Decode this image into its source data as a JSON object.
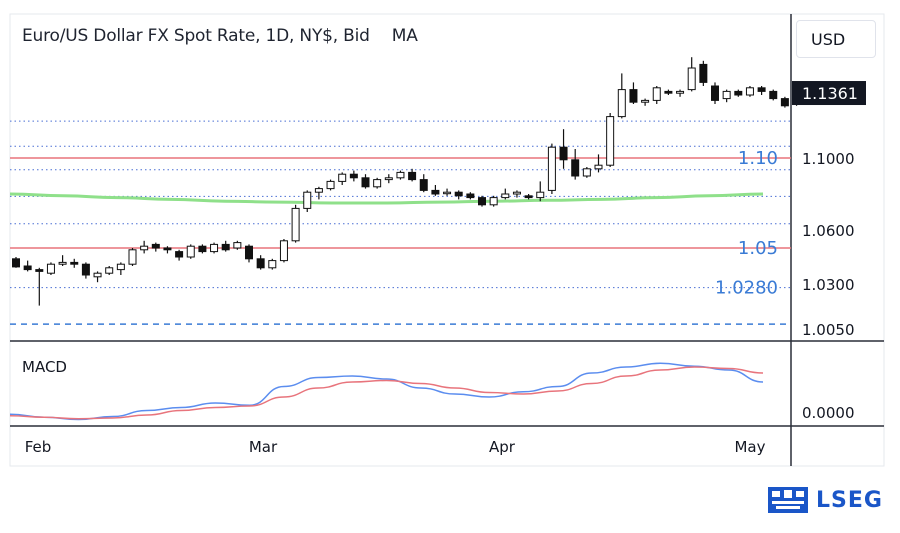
{
  "title": "Euro/US Dollar FX Spot Rate, 1D, NY$, Bid",
  "indicator": "MA",
  "currency": "USD",
  "last_price": "1.1361",
  "macd_label": "MACD",
  "macd_tick": "0.0000",
  "brand": "LSEG",
  "colors": {
    "up": "#ffffff",
    "down": "#111111",
    "resistance": "#e8747c",
    "level_text": "#3a7bd5",
    "ma": "#8fe08a",
    "macd": "#5b8def",
    "signal": "#e8747c",
    "grid_dotted": "#4a6fd4",
    "support_dashed": "#3a7bd5",
    "price_badge": "#131722",
    "brand": "#1a56c8"
  },
  "chart_data": {
    "type": "candlestick",
    "y_ticks": [
      "1.1000",
      "1.0600",
      "1.0300",
      "1.0050"
    ],
    "x_ticks": [
      "Feb",
      "Mar",
      "Apr",
      "May"
    ],
    "levels": [
      {
        "value": 1.1,
        "label": "1.10",
        "style": "solid"
      },
      {
        "value": 1.05,
        "label": "1.05",
        "style": "solid"
      },
      {
        "value": 1.028,
        "label": "1.0280",
        "style": "dotted"
      }
    ],
    "support_dashed": 1.0077,
    "dotted_grid": [
      1.1205,
      1.1065,
      1.0935,
      1.0787,
      1.0635
    ],
    "candles": [
      [
        1.044,
        1.045,
        1.039,
        1.0395
      ],
      [
        1.04,
        1.043,
        1.037,
        1.038
      ],
      [
        1.038,
        1.039,
        1.018,
        1.037
      ],
      [
        1.036,
        1.042,
        1.035,
        1.041
      ],
      [
        1.041,
        1.046,
        1.04,
        1.042
      ],
      [
        1.042,
        1.044,
        1.039,
        1.041
      ],
      [
        1.041,
        1.042,
        1.033,
        1.035
      ],
      [
        1.034,
        1.037,
        1.031,
        1.036
      ],
      [
        1.036,
        1.04,
        1.035,
        1.039
      ],
      [
        1.038,
        1.042,
        1.035,
        1.041
      ],
      [
        1.041,
        1.05,
        1.04,
        1.049
      ],
      [
        1.049,
        1.054,
        1.047,
        1.051
      ],
      [
        1.052,
        1.053,
        1.048,
        1.05
      ],
      [
        1.05,
        1.051,
        1.047,
        1.049
      ],
      [
        1.048,
        1.049,
        1.043,
        1.045
      ],
      [
        1.045,
        1.052,
        1.044,
        1.051
      ],
      [
        1.051,
        1.052,
        1.047,
        1.048
      ],
      [
        1.048,
        1.053,
        1.047,
        1.052
      ],
      [
        1.052,
        1.054,
        1.048,
        1.049
      ],
      [
        1.05,
        1.054,
        1.049,
        1.053
      ],
      [
        1.051,
        1.052,
        1.042,
        1.044
      ],
      [
        1.044,
        1.046,
        1.038,
        1.039
      ],
      [
        1.039,
        1.044,
        1.038,
        1.043
      ],
      [
        1.043,
        1.055,
        1.042,
        1.054
      ],
      [
        1.054,
        1.074,
        1.053,
        1.072
      ],
      [
        1.072,
        1.082,
        1.07,
        1.081
      ],
      [
        1.081,
        1.084,
        1.077,
        1.083
      ],
      [
        1.083,
        1.088,
        1.082,
        1.087
      ],
      [
        1.087,
        1.092,
        1.085,
        1.091
      ],
      [
        1.091,
        1.093,
        1.087,
        1.089
      ],
      [
        1.089,
        1.091,
        1.083,
        1.084
      ],
      [
        1.084,
        1.089,
        1.083,
        1.088
      ],
      [
        1.088,
        1.091,
        1.086,
        1.089
      ],
      [
        1.089,
        1.093,
        1.088,
        1.092
      ],
      [
        1.092,
        1.094,
        1.087,
        1.088
      ],
      [
        1.088,
        1.091,
        1.081,
        1.082
      ],
      [
        1.082,
        1.085,
        1.079,
        1.08
      ],
      [
        1.081,
        1.083,
        1.079,
        1.081
      ],
      [
        1.081,
        1.082,
        1.077,
        1.079
      ],
      [
        1.08,
        1.081,
        1.077,
        1.078
      ],
      [
        1.078,
        1.079,
        1.073,
        1.074
      ],
      [
        1.074,
        1.079,
        1.073,
        1.078
      ],
      [
        1.078,
        1.083,
        1.077,
        1.08
      ],
      [
        1.08,
        1.082,
        1.078,
        1.081
      ],
      [
        1.079,
        1.08,
        1.077,
        1.078
      ],
      [
        1.078,
        1.087,
        1.076,
        1.081
      ],
      [
        1.082,
        1.108,
        1.08,
        1.106
      ],
      [
        1.106,
        1.116,
        1.094,
        1.099
      ],
      [
        1.099,
        1.105,
        1.088,
        1.09
      ],
      [
        1.09,
        1.095,
        1.089,
        1.094
      ],
      [
        1.094,
        1.102,
        1.092,
        1.096
      ],
      [
        1.096,
        1.125,
        1.095,
        1.123
      ],
      [
        1.123,
        1.147,
        1.122,
        1.138
      ],
      [
        1.138,
        1.142,
        1.13,
        1.131
      ],
      [
        1.131,
        1.133,
        1.129,
        1.132
      ],
      [
        1.132,
        1.14,
        1.13,
        1.139
      ],
      [
        1.137,
        1.138,
        1.135,
        1.136
      ],
      [
        1.136,
        1.138,
        1.134,
        1.137
      ],
      [
        1.138,
        1.156,
        1.137,
        1.15
      ],
      [
        1.152,
        1.154,
        1.14,
        1.142
      ],
      [
        1.14,
        1.142,
        1.13,
        1.132
      ],
      [
        1.133,
        1.138,
        1.131,
        1.137
      ],
      [
        1.137,
        1.138,
        1.134,
        1.135
      ],
      [
        1.135,
        1.14,
        1.134,
        1.139
      ],
      [
        1.139,
        1.14,
        1.135,
        1.137
      ],
      [
        1.137,
        1.138,
        1.132,
        1.133
      ],
      [
        1.133,
        1.134,
        1.128,
        1.129
      ],
      [
        1.13,
        1.138,
        1.129,
        1.1361
      ]
    ],
    "ma": [
      1.08,
      1.079,
      1.078,
      1.077,
      1.076,
      1.0755,
      1.075,
      1.075,
      1.0755,
      1.076,
      1.0765,
      1.077,
      1.078,
      1.079,
      1.08
    ],
    "macd": [
      -0.0015,
      -0.0035,
      -0.005,
      -0.003,
      0.001,
      0.003,
      0.006,
      0.0045,
      0.017,
      0.023,
      0.024,
      0.022,
      0.016,
      0.012,
      0.01,
      0.0135,
      0.017,
      0.026,
      0.03,
      0.0325,
      0.0305,
      0.028,
      0.02
    ],
    "signal": [
      -0.0025,
      -0.0035,
      -0.0045,
      -0.004,
      -0.002,
      0.001,
      0.003,
      0.004,
      0.01,
      0.016,
      0.02,
      0.021,
      0.019,
      0.016,
      0.013,
      0.012,
      0.014,
      0.019,
      0.024,
      0.028,
      0.03,
      0.029,
      0.026
    ]
  }
}
